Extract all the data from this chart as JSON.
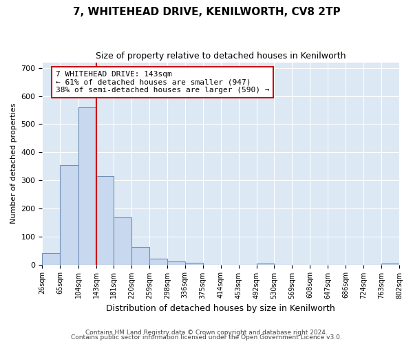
{
  "title": "7, WHITEHEAD DRIVE, KENILWORTH, CV8 2TP",
  "subtitle": "Size of property relative to detached houses in Kenilworth",
  "xlabel": "Distribution of detached houses by size in Kenilworth",
  "ylabel": "Number of detached properties",
  "property_size": 143,
  "bar_edges": [
    26,
    65,
    104,
    143,
    181,
    220,
    259,
    298,
    336,
    375,
    414,
    453,
    492,
    530,
    569,
    608,
    647,
    686,
    724,
    763,
    802
  ],
  "bar_values": [
    40,
    355,
    560,
    315,
    168,
    62,
    22,
    11,
    7,
    0,
    0,
    0,
    5,
    0,
    0,
    0,
    0,
    0,
    0,
    5
  ],
  "bar_color": "#c8d8ee",
  "bar_edge_color": "#7090b8",
  "vline_color": "#cc0000",
  "annotation_text": "7 WHITEHEAD DRIVE: 143sqm\n← 61% of detached houses are smaller (947)\n38% of semi-detached houses are larger (590) →",
  "annotation_box_color": "#ffffff",
  "annotation_box_edge": "#cc0000",
  "ylim": [
    0,
    720
  ],
  "yticks": [
    0,
    100,
    200,
    300,
    400,
    500,
    600,
    700
  ],
  "footer1": "Contains HM Land Registry data © Crown copyright and database right 2024.",
  "footer2": "Contains public sector information licensed under the Open Government Licence v3.0.",
  "bg_color": "#ffffff",
  "plot_bg_color": "#dce8f4"
}
